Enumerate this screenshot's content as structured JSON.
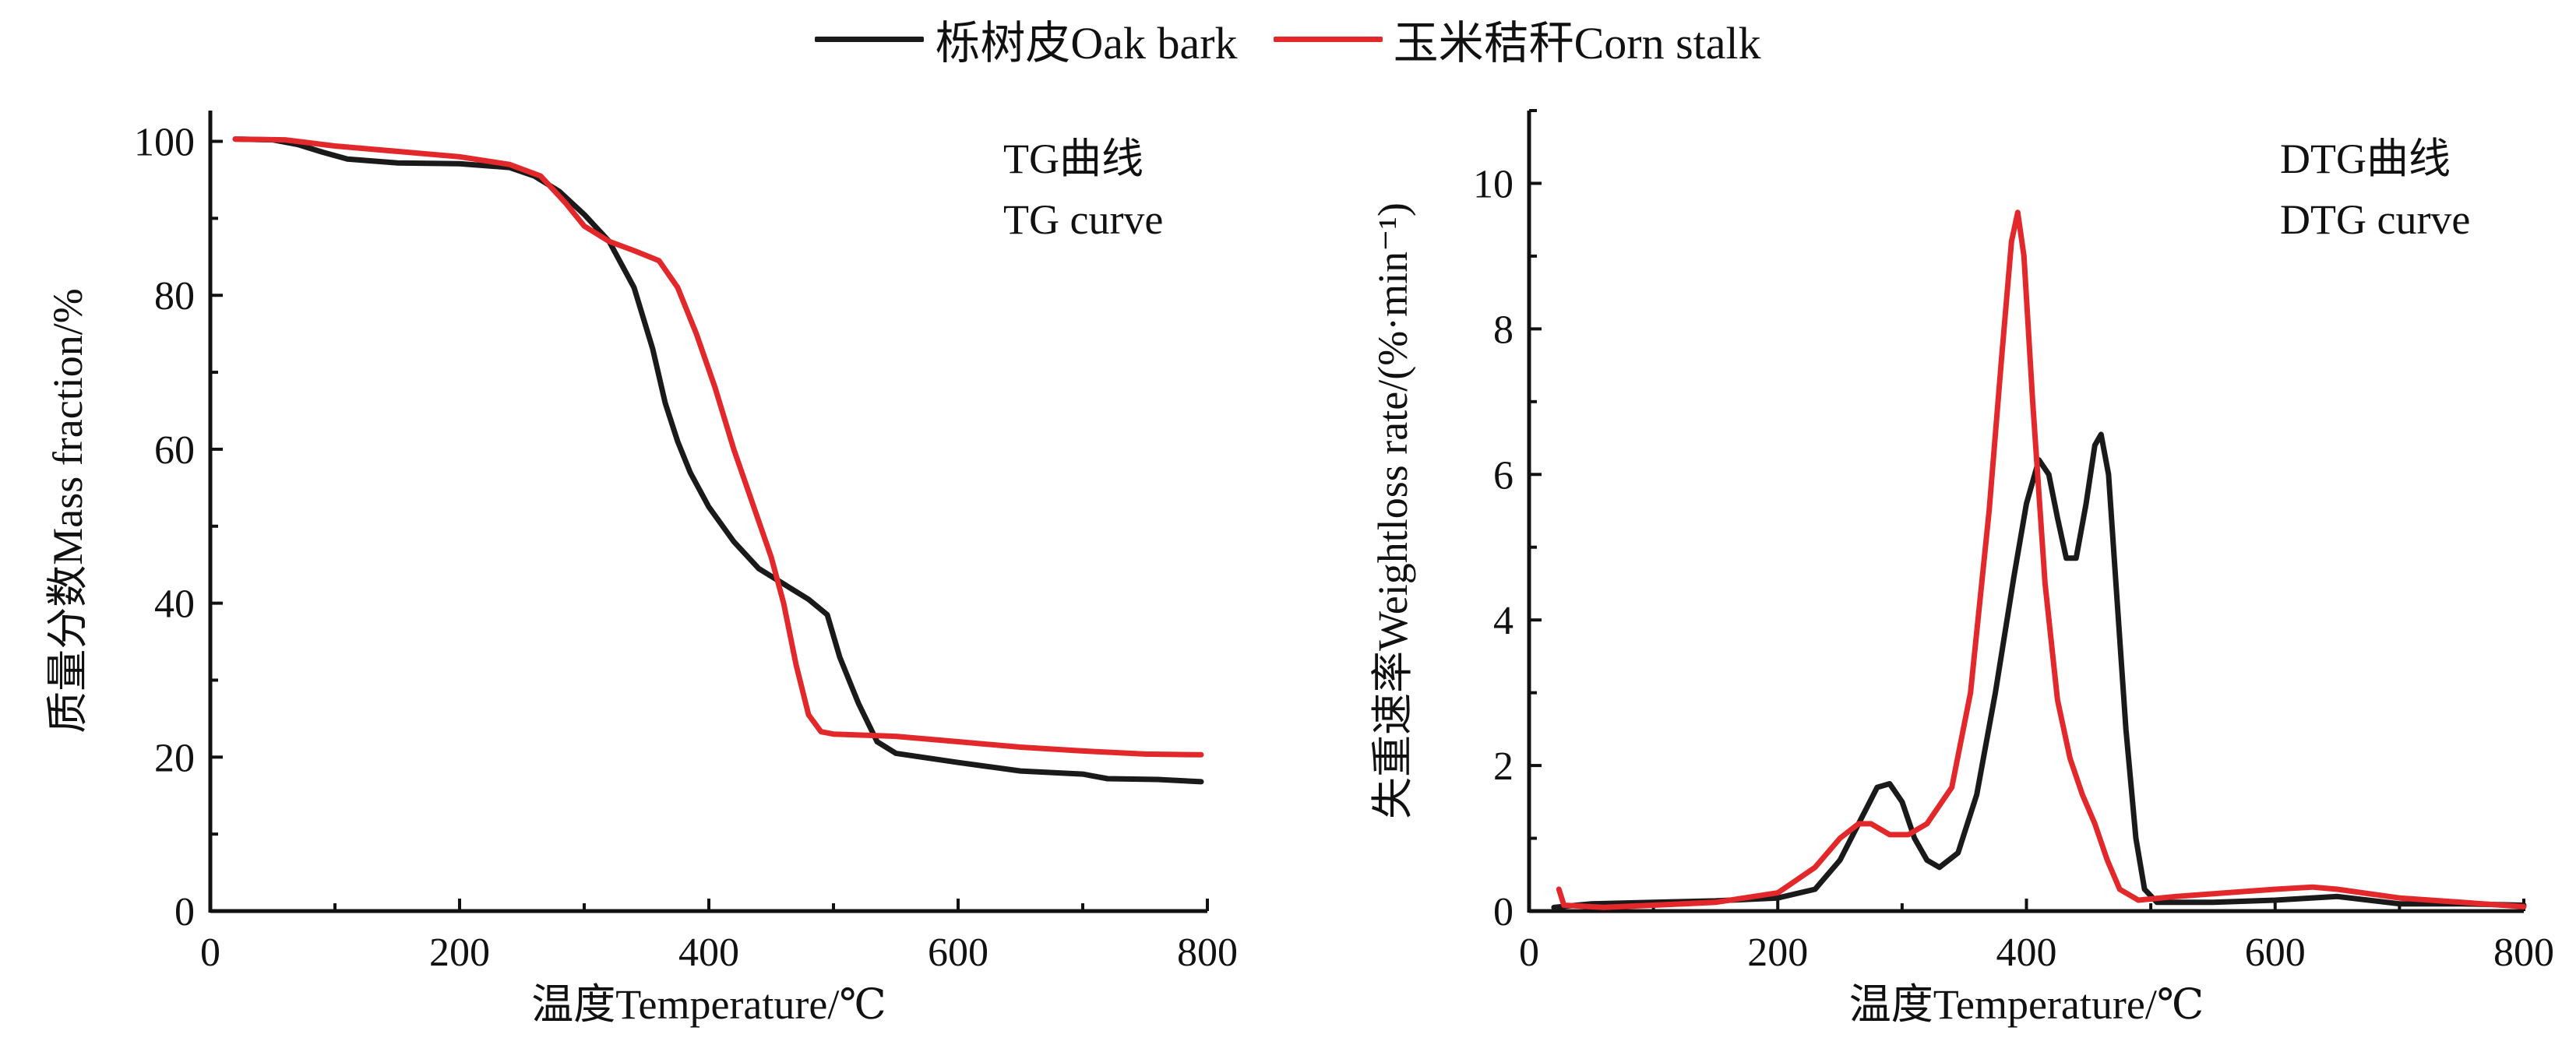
{
  "legend": {
    "oak_label": "栎树皮Oak bark",
    "corn_label": "玉米秸秆Corn stalk"
  },
  "colors": {
    "oak": "#1a1a1a",
    "corn": "#e3282b",
    "axis": "#111111"
  },
  "chart_data": [
    {
      "type": "line",
      "title": "",
      "annotation": [
        "TG曲线",
        "TG curve"
      ],
      "xlabel": "温度Temperature/℃",
      "ylabel": "质量分数Mass fraction/%",
      "xlim": [
        0,
        800
      ],
      "ylim": [
        0,
        104
      ],
      "xticks": [
        0,
        200,
        400,
        600,
        800
      ],
      "yticks": [
        0,
        20,
        40,
        60,
        80,
        100
      ],
      "series": [
        {
          "name": "栎树皮Oak bark",
          "color": "#1a1a1a",
          "points": [
            [
              20,
              100.3
            ],
            [
              50,
              100.2
            ],
            [
              70,
              99.6
            ],
            [
              90,
              98.6
            ],
            [
              110,
              97.7
            ],
            [
              150,
              97.2
            ],
            [
              200,
              97.1
            ],
            [
              240,
              96.6
            ],
            [
              260,
              95.5
            ],
            [
              280,
              93.5
            ],
            [
              300,
              90.5
            ],
            [
              320,
              87
            ],
            [
              340,
              81
            ],
            [
              355,
              73
            ],
            [
              365,
              66
            ],
            [
              375,
              61
            ],
            [
              385,
              57
            ],
            [
              400,
              52.5
            ],
            [
              420,
              48
            ],
            [
              440,
              44.5
            ],
            [
              460,
              42.5
            ],
            [
              480,
              40.5
            ],
            [
              495,
              38.5
            ],
            [
              505,
              33
            ],
            [
              520,
              27
            ],
            [
              535,
              22
            ],
            [
              550,
              20.5
            ],
            [
              600,
              19.3
            ],
            [
              650,
              18.2
            ],
            [
              700,
              17.8
            ],
            [
              720,
              17.2
            ],
            [
              760,
              17.1
            ],
            [
              795,
              16.8
            ]
          ]
        },
        {
          "name": "玉米秸秆Corn stalk",
          "color": "#e3282b",
          "points": [
            [
              20,
              100.3
            ],
            [
              60,
              100.2
            ],
            [
              100,
              99.4
            ],
            [
              150,
              98.7
            ],
            [
              200,
              98
            ],
            [
              240,
              97
            ],
            [
              265,
              95.5
            ],
            [
              285,
              92
            ],
            [
              300,
              89
            ],
            [
              320,
              87
            ],
            [
              340,
              85.8
            ],
            [
              360,
              84.5
            ],
            [
              375,
              81
            ],
            [
              390,
              75
            ],
            [
              405,
              68
            ],
            [
              420,
              60
            ],
            [
              435,
              53
            ],
            [
              450,
              46
            ],
            [
              460,
              40
            ],
            [
              470,
              32
            ],
            [
              480,
              25.5
            ],
            [
              490,
              23.3
            ],
            [
              500,
              23
            ],
            [
              550,
              22.7
            ],
            [
              600,
              22
            ],
            [
              650,
              21.3
            ],
            [
              700,
              20.8
            ],
            [
              750,
              20.4
            ],
            [
              795,
              20.3
            ]
          ]
        }
      ]
    },
    {
      "type": "line",
      "title": "",
      "annotation": [
        "DTG曲线",
        "DTG curve"
      ],
      "xlabel": "温度Temperature/℃",
      "ylabel": "失重速率Weightloss rate/(%·min⁻¹)",
      "xlim": [
        0,
        800
      ],
      "ylim": [
        0,
        11
      ],
      "xticks": [
        0,
        200,
        400,
        600,
        800
      ],
      "yticks": [
        0,
        2,
        4,
        6,
        8,
        10
      ],
      "series": [
        {
          "name": "栎树皮Oak bark",
          "color": "#1a1a1a",
          "points": [
            [
              20,
              0.05
            ],
            [
              50,
              0.1
            ],
            [
              100,
              0.12
            ],
            [
              150,
              0.14
            ],
            [
              200,
              0.18
            ],
            [
              230,
              0.3
            ],
            [
              250,
              0.7
            ],
            [
              265,
              1.2
            ],
            [
              280,
              1.7
            ],
            [
              290,
              1.75
            ],
            [
              300,
              1.5
            ],
            [
              310,
              1.0
            ],
            [
              320,
              0.7
            ],
            [
              330,
              0.6
            ],
            [
              345,
              0.8
            ],
            [
              360,
              1.6
            ],
            [
              375,
              3.0
            ],
            [
              390,
              4.6
            ],
            [
              400,
              5.6
            ],
            [
              410,
              6.2
            ],
            [
              418,
              6.0
            ],
            [
              425,
              5.4
            ],
            [
              432,
              4.85
            ],
            [
              440,
              4.85
            ],
            [
              448,
              5.6
            ],
            [
              455,
              6.4
            ],
            [
              460,
              6.55
            ],
            [
              466,
              6.0
            ],
            [
              472,
              4.5
            ],
            [
              480,
              2.5
            ],
            [
              488,
              1.0
            ],
            [
              495,
              0.3
            ],
            [
              505,
              0.12
            ],
            [
              550,
              0.12
            ],
            [
              600,
              0.15
            ],
            [
              650,
              0.2
            ],
            [
              700,
              0.1
            ],
            [
              750,
              0.1
            ],
            [
              800,
              0.08
            ]
          ]
        },
        {
          "name": "玉米秸秆Corn stalk",
          "color": "#e3282b",
          "points": [
            [
              24,
              0.3
            ],
            [
              28,
              0.08
            ],
            [
              60,
              0.05
            ],
            [
              100,
              0.08
            ],
            [
              150,
              0.12
            ],
            [
              200,
              0.25
            ],
            [
              230,
              0.6
            ],
            [
              250,
              1.0
            ],
            [
              265,
              1.2
            ],
            [
              275,
              1.2
            ],
            [
              290,
              1.05
            ],
            [
              305,
              1.05
            ],
            [
              320,
              1.2
            ],
            [
              340,
              1.7
            ],
            [
              355,
              3.0
            ],
            [
              370,
              5.5
            ],
            [
              380,
              7.6
            ],
            [
              388,
              9.2
            ],
            [
              393,
              9.6
            ],
            [
              398,
              9.0
            ],
            [
              405,
              7.0
            ],
            [
              415,
              4.5
            ],
            [
              425,
              2.9
            ],
            [
              435,
              2.1
            ],
            [
              445,
              1.6
            ],
            [
              455,
              1.2
            ],
            [
              465,
              0.7
            ],
            [
              475,
              0.3
            ],
            [
              490,
              0.15
            ],
            [
              520,
              0.2
            ],
            [
              560,
              0.25
            ],
            [
              600,
              0.3
            ],
            [
              630,
              0.33
            ],
            [
              650,
              0.3
            ],
            [
              700,
              0.18
            ],
            [
              750,
              0.12
            ],
            [
              800,
              0.06
            ]
          ]
        }
      ]
    }
  ]
}
